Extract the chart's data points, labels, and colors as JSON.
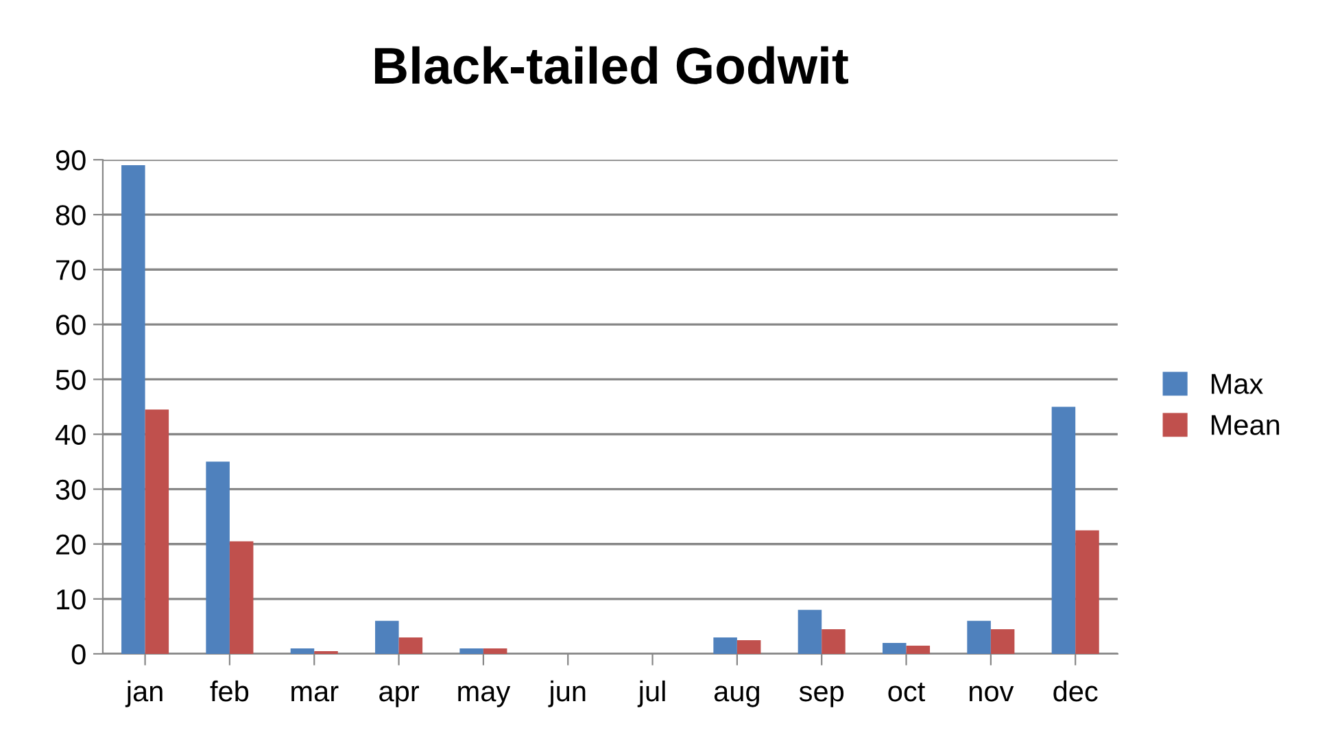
{
  "chart_data": {
    "type": "bar",
    "title": "Black-tailed Godwit",
    "categories": [
      "jan",
      "feb",
      "mar",
      "apr",
      "may",
      "jun",
      "jul",
      "aug",
      "sep",
      "oct",
      "nov",
      "dec"
    ],
    "series": [
      {
        "name": "Max",
        "color": "#4f81bd",
        "values": [
          89,
          35,
          1,
          6,
          1,
          0,
          0,
          3,
          8,
          2,
          6,
          45
        ]
      },
      {
        "name": "Mean",
        "color": "#c0504d",
        "values": [
          44.5,
          20.5,
          0.5,
          3,
          1,
          0,
          0,
          2.5,
          4.5,
          1.5,
          4.5,
          22.5
        ]
      }
    ],
    "ylim": [
      0,
      90
    ],
    "yticks": [
      0,
      10,
      20,
      30,
      40,
      50,
      60,
      70,
      80,
      90
    ],
    "grid": "y",
    "legend": "right"
  }
}
